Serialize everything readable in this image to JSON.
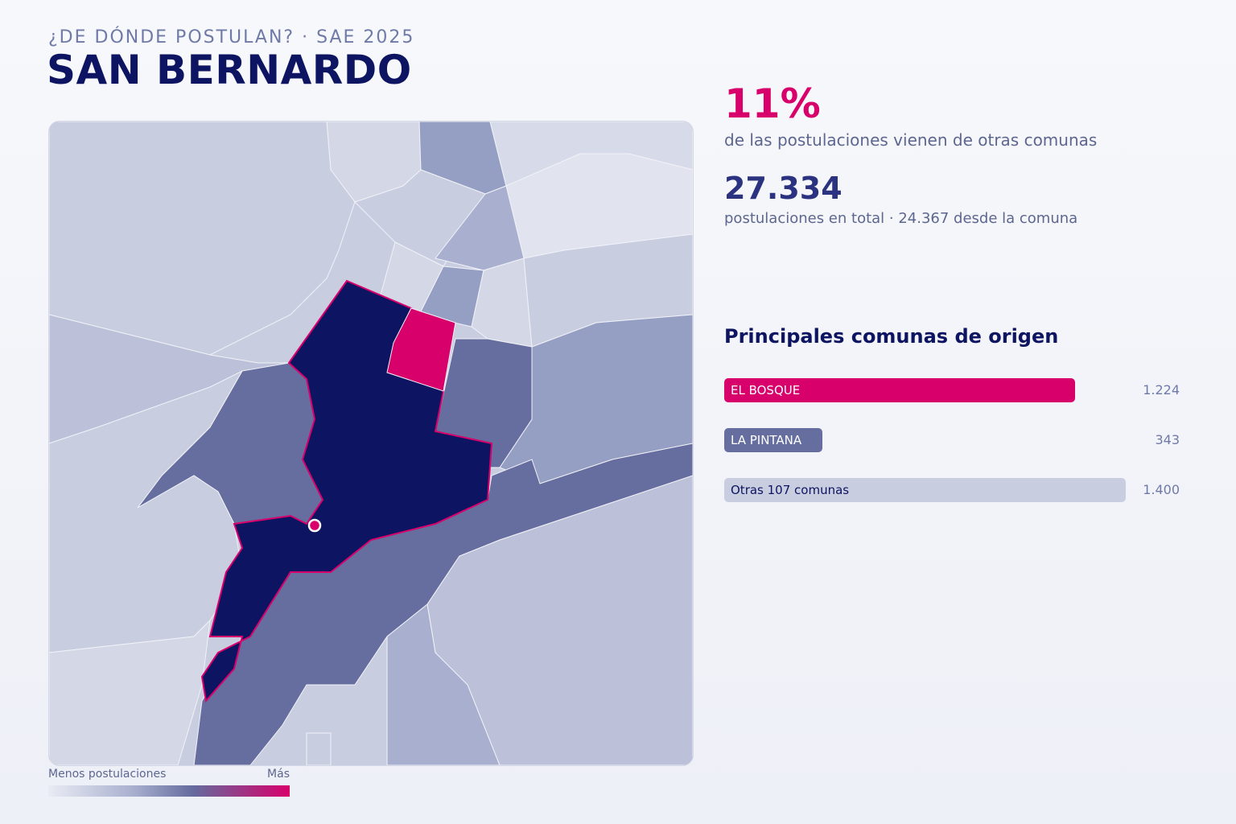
{
  "header": {
    "kicker": "¿DE DÓNDE POSTULAN? · SAE 2025",
    "title": "SAN BERNARDO"
  },
  "stats": {
    "share_value": "11%",
    "share_label": "de las postulaciones vienen de otras comunas",
    "total_value": "27.334",
    "total_label": "postulaciones en total · 24.367 desde la comuna"
  },
  "origins": {
    "title": "Principales comunas de origen",
    "items": [
      {
        "name": "EL BOSQUE",
        "value": "1.224",
        "amount": 1224,
        "color": "#d8006b"
      },
      {
        "name": "LA PINTANA",
        "value": "343",
        "amount": 343,
        "color": "#666e9f"
      },
      {
        "name": "Otras 107 comunas",
        "value": "1.400",
        "amount": 1400,
        "color": "#c9cde0"
      }
    ]
  },
  "legend": {
    "low_label": "Menos postulaciones",
    "high_label": "Más"
  },
  "map": {
    "selected_comuna": "SAN BERNARDO",
    "scale_colors": [
      "#e9ebf4",
      "#c9cde0",
      "#a9b0cf",
      "#959fc3",
      "#666e9f",
      "#d8006b",
      "#0d1461"
    ],
    "highlight_color": "#d8006b",
    "selected_color": "#0d1461"
  }
}
